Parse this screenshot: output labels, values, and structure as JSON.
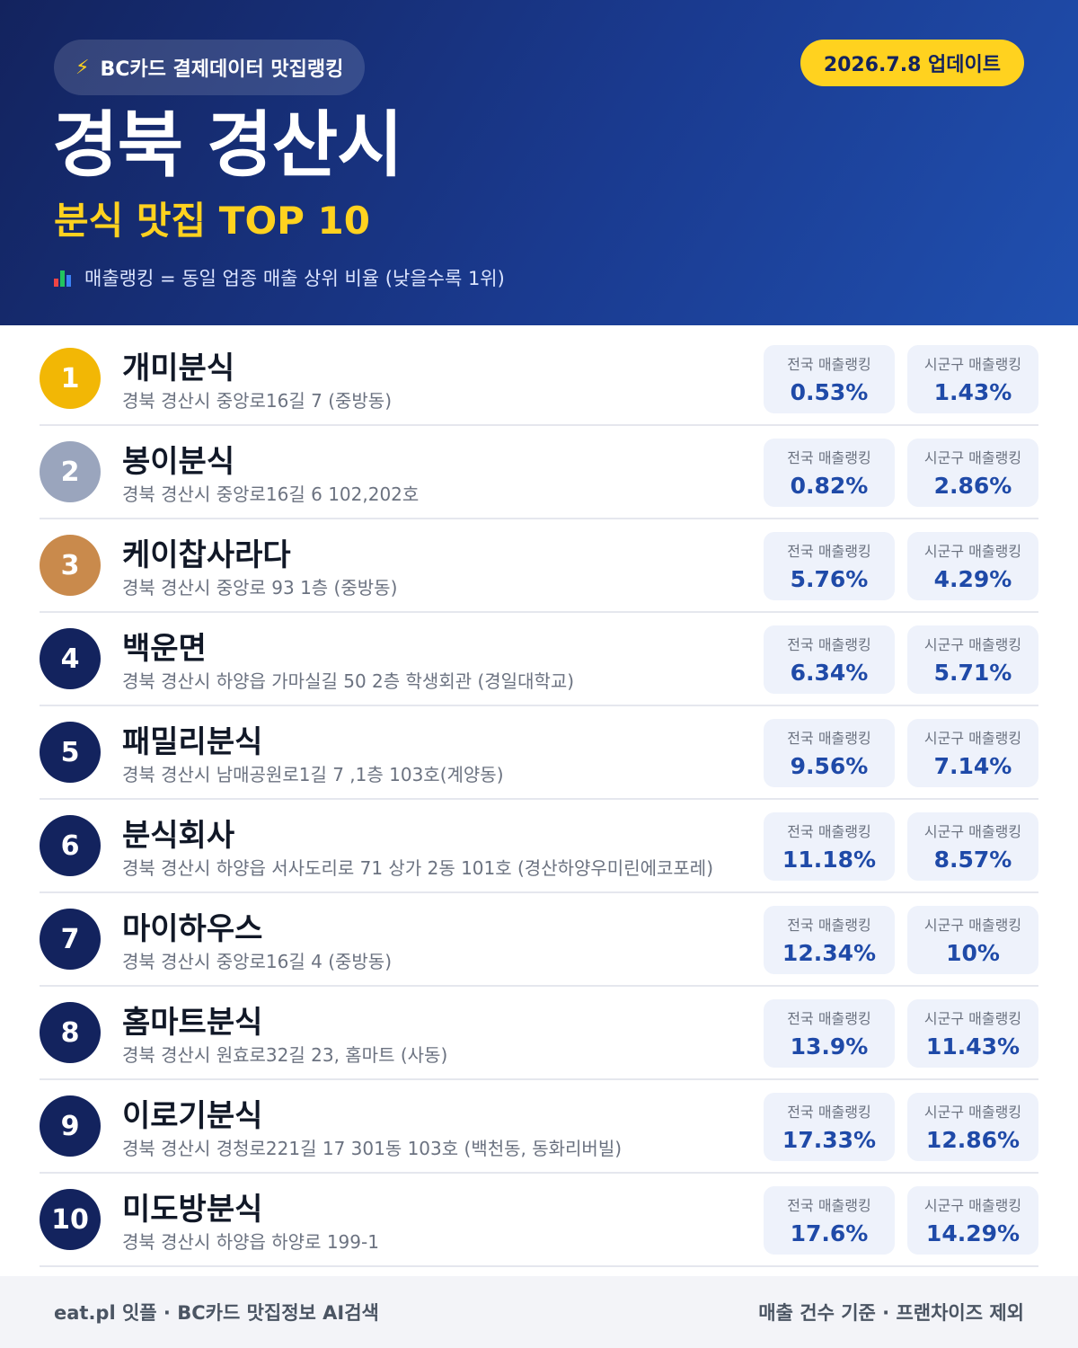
{
  "header": {
    "brand_icon": "lightning-icon",
    "brand": "BC카드 결제데이터 맛집랭킹",
    "update": "2026.7.8 업데이트",
    "city": "경북 경산시",
    "subtitle": "분식 맛집 TOP 10",
    "note_icon": "bar-chart-icon",
    "note": "매출랭킹 = 동일 업종 매출 상위 비율 (낮을수록 1위)"
  },
  "labels": {
    "national": "전국 매출랭킹",
    "regional": "시군구 매출랭킹"
  },
  "colors": {
    "header_dark": "#13235e",
    "header_light": "#2050b0",
    "accent_yellow": "#ffd21f",
    "gold": "#f2b705",
    "silver": "#9aa5bd",
    "bronze": "#c98a4c",
    "value_blue": "#1f4aa8"
  },
  "restaurants": [
    {
      "rank": "1",
      "name": "개미분식",
      "address": "경북 경산시 중앙로16길 7 (중방동)",
      "national": "0.53%",
      "regional": "1.43%"
    },
    {
      "rank": "2",
      "name": "봉이분식",
      "address": "경북 경산시 중앙로16길 6 102,202호",
      "national": "0.82%",
      "regional": "2.86%"
    },
    {
      "rank": "3",
      "name": "케이찹사라다",
      "address": "경북 경산시 중앙로 93 1층 (중방동)",
      "national": "5.76%",
      "regional": "4.29%"
    },
    {
      "rank": "4",
      "name": "백운면",
      "address": "경북 경산시 하양읍 가마실길 50 2층 학생회관 (경일대학교)",
      "national": "6.34%",
      "regional": "5.71%"
    },
    {
      "rank": "5",
      "name": "패밀리분식",
      "address": "경북 경산시 남매공원로1길 7 ,1층 103호(계양동)",
      "national": "9.56%",
      "regional": "7.14%"
    },
    {
      "rank": "6",
      "name": "분식회사",
      "address": "경북 경산시 하양읍 서사도리로 71 상가 2동 101호 (경산하양우미린에코포레)",
      "national": "11.18%",
      "regional": "8.57%"
    },
    {
      "rank": "7",
      "name": "마이하우스",
      "address": "경북 경산시 중앙로16길 4 (중방동)",
      "national": "12.34%",
      "regional": "10%"
    },
    {
      "rank": "8",
      "name": "홈마트분식",
      "address": "경북 경산시 원효로32길 23, 홈마트 (사동)",
      "national": "13.9%",
      "regional": "11.43%"
    },
    {
      "rank": "9",
      "name": "이로기분식",
      "address": "경북 경산시 경청로221길 17 301동 103호 (백천동, 동화리버빌)",
      "national": "17.33%",
      "regional": "12.86%"
    },
    {
      "rank": "10",
      "name": "미도방분식",
      "address": "경북 경산시 하양읍 하양로 199-1",
      "national": "17.6%",
      "regional": "14.29%"
    }
  ],
  "footer": {
    "left": "eat.pl 잇플 · BC카드 맛집정보 AI검색",
    "right": "매출 건수 기준 · 프랜차이즈 제외"
  }
}
